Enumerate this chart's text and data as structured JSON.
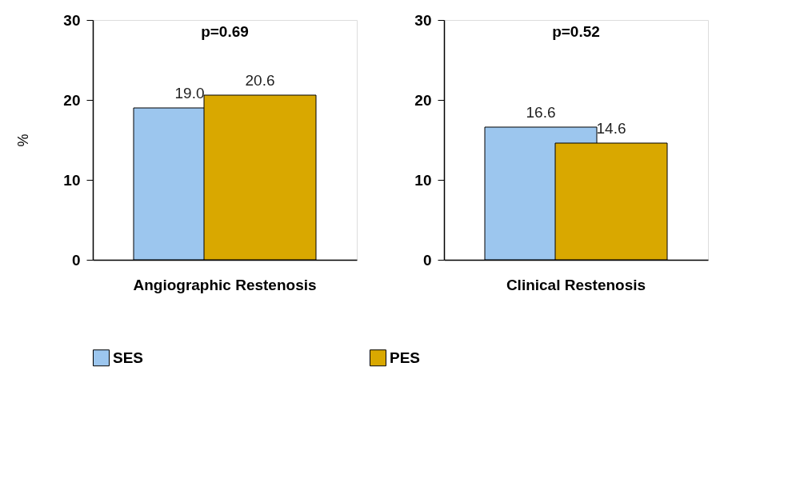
{
  "chart_data": [
    {
      "type": "bar",
      "categories": [
        "Angiographic Restenosis"
      ],
      "ylabel": "%",
      "ylim": [
        0,
        30
      ],
      "yticks": [
        0,
        10,
        20,
        30
      ],
      "legend": "bottom",
      "annotations": [
        "p=0.69"
      ],
      "series": [
        {
          "name": "SES",
          "color": "#9cc6ee",
          "values": [
            19.0
          ],
          "value_labels": [
            "19.0"
          ]
        },
        {
          "name": "PES",
          "color": "#d9a800",
          "values": [
            20.6
          ],
          "value_labels": [
            "20.6"
          ]
        }
      ]
    },
    {
      "type": "bar",
      "categories": [
        "Clinical Restenosis"
      ],
      "ylim": [
        0,
        30
      ],
      "yticks": [
        0,
        10,
        20,
        30
      ],
      "legend": "bottom",
      "annotations": [
        "p=0.52"
      ],
      "series": [
        {
          "name": "SES",
          "color": "#9cc6ee",
          "values": [
            16.6
          ],
          "value_labels": [
            "16.6"
          ]
        },
        {
          "name": "PES",
          "color": "#d9a800",
          "values": [
            14.6
          ],
          "value_labels": [
            "14.6"
          ]
        }
      ]
    }
  ]
}
